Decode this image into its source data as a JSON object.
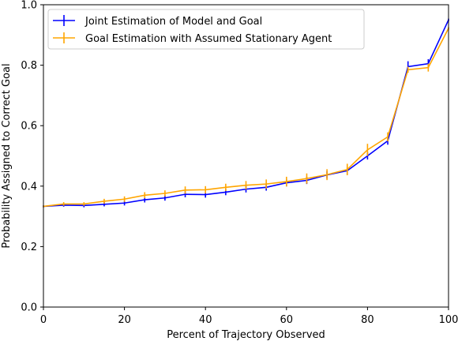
{
  "chart_data": {
    "type": "line",
    "title": "",
    "xlabel": "Percent of Trajectory Observed",
    "ylabel": "Probability Assigned to Correct Goal",
    "xlim": [
      0,
      100
    ],
    "ylim": [
      0.0,
      1.0
    ],
    "x_ticks": [
      "0",
      "20",
      "40",
      "60",
      "80",
      "100"
    ],
    "y_ticks": [
      "0.0",
      "0.2",
      "0.4",
      "0.6",
      "0.8",
      "1.0"
    ],
    "grid": false,
    "legend_position": "top-left",
    "x": [
      0,
      5,
      10,
      15,
      20,
      25,
      30,
      35,
      40,
      45,
      50,
      55,
      60,
      65,
      70,
      75,
      80,
      85,
      90,
      95,
      100
    ],
    "series": [
      {
        "name": "Joint Estimation of Model and Goal",
        "color": "#0000ff",
        "values": [
          0.333,
          0.337,
          0.336,
          0.34,
          0.344,
          0.355,
          0.361,
          0.373,
          0.372,
          0.38,
          0.39,
          0.396,
          0.411,
          0.419,
          0.437,
          0.451,
          0.5,
          0.55,
          0.795,
          0.805,
          0.95
        ],
        "errors": [
          0.003,
          0.005,
          0.006,
          0.007,
          0.008,
          0.009,
          0.009,
          0.01,
          0.01,
          0.01,
          0.011,
          0.011,
          0.012,
          0.012,
          0.012,
          0.012,
          0.012,
          0.013,
          0.018,
          0.015,
          0.004
        ]
      },
      {
        "name": "Goal Estimation with Assumed Stationary Agent",
        "color": "#ffa500",
        "values": [
          0.333,
          0.341,
          0.341,
          0.35,
          0.357,
          0.37,
          0.376,
          0.387,
          0.388,
          0.396,
          0.403,
          0.407,
          0.415,
          0.425,
          0.438,
          0.455,
          0.52,
          0.563,
          0.785,
          0.792,
          0.922
        ],
        "errors": [
          0.003,
          0.006,
          0.006,
          0.008,
          0.009,
          0.01,
          0.01,
          0.012,
          0.012,
          0.012,
          0.014,
          0.015,
          0.016,
          0.017,
          0.018,
          0.019,
          0.02,
          0.015,
          0.01,
          0.013,
          0.004
        ]
      }
    ]
  }
}
